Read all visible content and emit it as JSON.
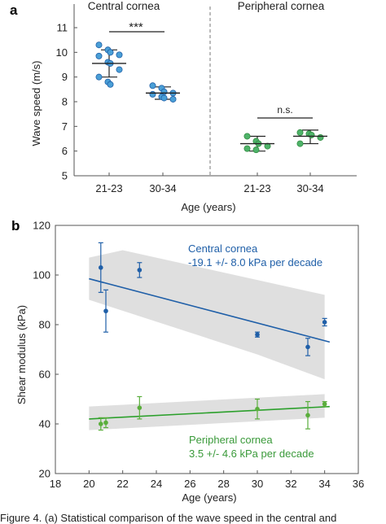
{
  "panel_a": {
    "label": "a",
    "ylabel": "Wave speed (m/s)",
    "xlabel": "Age (years)",
    "group_titles": [
      "Central cornea",
      "Peripheral cornea"
    ],
    "yticks": [
      "5",
      "6",
      "7",
      "8",
      "9",
      "10",
      "11"
    ],
    "xtick_labels": [
      "21-23",
      "30-34",
      "21-23",
      "30-34"
    ],
    "sig_labels": [
      "***",
      "n.s."
    ]
  },
  "panel_b": {
    "label": "b",
    "ylabel": "Shear modulus (kPa)",
    "xlabel": "Age (years)",
    "xticks": [
      "18",
      "20",
      "22",
      "24",
      "26",
      "28",
      "30",
      "32",
      "34",
      "36"
    ],
    "yticks": [
      "20",
      "40",
      "60",
      "80",
      "100",
      "120"
    ],
    "central_title": "Central cornea",
    "central_rate": "-19.1 +/- 8.0 kPa per decade",
    "peripheral_title": "Peripheral cornea",
    "peripheral_rate": "3.5 +/- 4.6 kPa per decade"
  },
  "caption": "Figure 4. (a) Statistical comparison of the wave speed in the central and",
  "colors": {
    "central": "#1f5fa8",
    "central_fill": "#4a9fd6",
    "peripheral": "#2e8b3e",
    "peripheral_fill": "#4fb36a",
    "peripheral_b": "#5aae3c",
    "band": "#d9d9d9"
  },
  "chart_data": [
    {
      "type": "scatter",
      "ylim": [
        5,
        11.5
      ],
      "groups": [
        {
          "name": "Central cornea 21-23",
          "values": [
            10.3,
            10.1,
            10.0,
            9.9,
            9.85,
            9.6,
            9.55,
            9.3,
            9.0,
            8.8,
            8.7
          ],
          "mean": 9.55,
          "sd_low": 9.0,
          "sd_high": 10.1
        },
        {
          "name": "Central cornea 30-34",
          "values": [
            8.65,
            8.55,
            8.4,
            8.35,
            8.3,
            8.2,
            8.15,
            8.1
          ],
          "mean": 8.35,
          "sd_low": 8.1,
          "sd_high": 8.6
        },
        {
          "name": "Peripheral cornea 21-23",
          "values": [
            6.6,
            6.4,
            6.3,
            6.2,
            6.1,
            6.05
          ],
          "mean": 6.3,
          "sd_low": 6.0,
          "sd_high": 6.6
        },
        {
          "name": "Peripheral cornea 30-34",
          "values": [
            6.75,
            6.7,
            6.65,
            6.55,
            6.3
          ],
          "mean": 6.6,
          "sd_low": 6.3,
          "sd_high": 6.85
        }
      ],
      "significance": [
        "***",
        "n.s."
      ]
    },
    {
      "type": "scatter",
      "xlim": [
        18,
        36
      ],
      "ylim": [
        20,
        120
      ],
      "series": [
        {
          "name": "Central cornea",
          "points": [
            {
              "x": 20.7,
              "y": 103,
              "err": 10
            },
            {
              "x": 21.0,
              "y": 85.5,
              "err": 8.5
            },
            {
              "x": 23.0,
              "y": 102,
              "err": 3
            },
            {
              "x": 30.0,
              "y": 76,
              "err": 1
            },
            {
              "x": 33.0,
              "y": 71,
              "err": 3.5
            },
            {
              "x": 34.0,
              "y": 81,
              "err": 1.5
            }
          ],
          "fit": [
            [
              20,
              98.5
            ],
            [
              34.3,
              73
            ]
          ],
          "band_upper": [
            [
              20,
              107
            ],
            [
              22,
              110
            ],
            [
              34,
              92
            ]
          ],
          "band_lower": [
            [
              20,
              90
            ],
            [
              30,
              68
            ],
            [
              34,
              58
            ]
          ]
        },
        {
          "name": "Peripheral cornea",
          "points": [
            {
              "x": 20.7,
              "y": 40,
              "err": 2.5
            },
            {
              "x": 21.0,
              "y": 40.5,
              "err": 2
            },
            {
              "x": 23.0,
              "y": 46.5,
              "err": 4.5
            },
            {
              "x": 30.0,
              "y": 46,
              "err": 4
            },
            {
              "x": 33.0,
              "y": 43.5,
              "err": 5.5
            },
            {
              "x": 34.0,
              "y": 48,
              "err": 1
            }
          ],
          "fit": [
            [
              20,
              42
            ],
            [
              34.3,
              47
            ]
          ],
          "band_upper": [
            [
              20,
              47
            ],
            [
              34,
              52
            ]
          ],
          "band_lower": [
            [
              20,
              37.5
            ],
            [
              34,
              42.5
            ]
          ]
        }
      ]
    }
  ]
}
